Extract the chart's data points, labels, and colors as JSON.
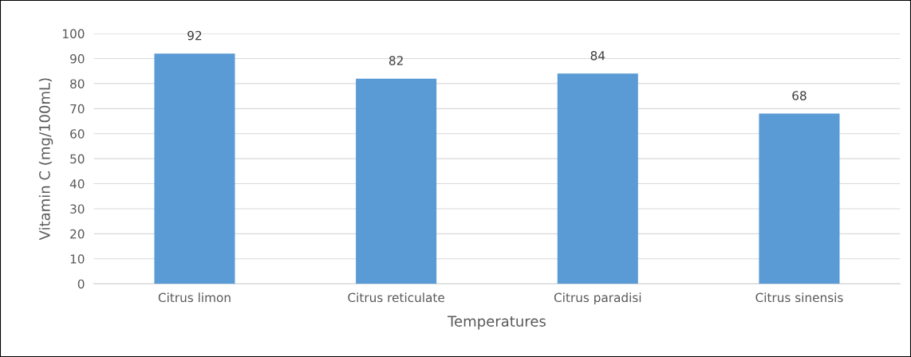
{
  "chart_data": {
    "type": "bar",
    "xlabel": "Temperatures",
    "ylabel": "Vitamin C (mg/100mL)",
    "categories": [
      "Citrus limon",
      "Citrus reticulate",
      "Citrus paradisi",
      "Citrus sinensis"
    ],
    "values": [
      92,
      82,
      84,
      68
    ],
    "color": "#5b9bd5",
    "ylim": [
      0,
      100
    ],
    "yticks": [
      0,
      10,
      20,
      30,
      40,
      50,
      60,
      70,
      80,
      90,
      100
    ],
    "grid": "y",
    "data_labels": true
  }
}
